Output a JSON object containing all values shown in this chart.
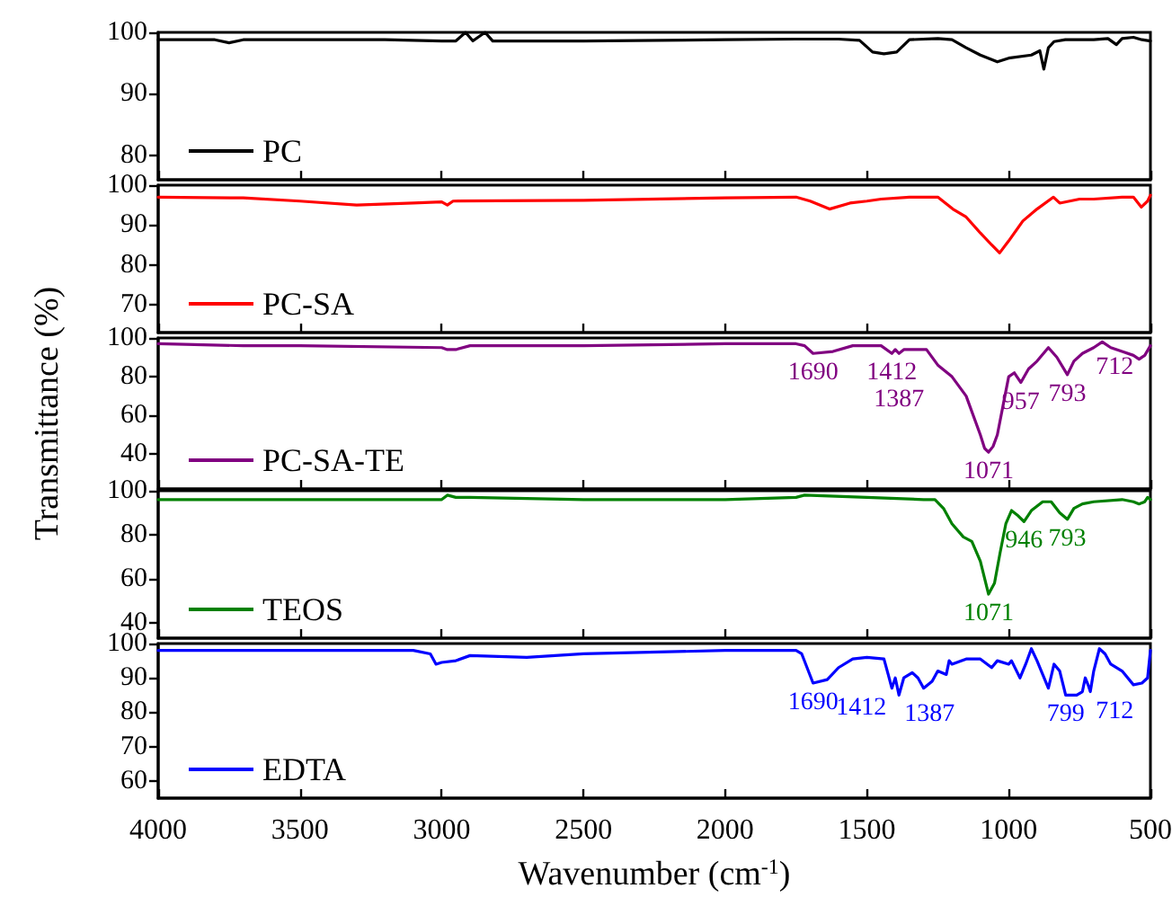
{
  "chart_data": [
    {
      "type": "line",
      "xlim": [
        4000,
        500
      ],
      "xticks": [
        4000,
        3500,
        3000,
        2500,
        2000,
        1500,
        1000,
        500
      ],
      "ylim": [
        76,
        100
      ],
      "yticks": [
        80,
        90,
        100
      ],
      "tick_labels": "y",
      "legend": "bottom left",
      "series": [
        {
          "name": "PC",
          "color": "#000000",
          "x": [
            4000,
            3800,
            3750,
            3700,
            3200,
            3000,
            2950,
            2916,
            2890,
            2847,
            2820,
            2500,
            2000,
            1750,
            1600,
            1526,
            1480,
            1440,
            1395,
            1350,
            1250,
            1200,
            1150,
            1100,
            1040,
            1000,
            920,
            890,
            876,
            860,
            840,
            800,
            700,
            650,
            620,
            600,
            560,
            530,
            500
          ],
          "values": [
            98.8,
            98.8,
            98.3,
            98.8,
            98.8,
            98.6,
            98.6,
            100,
            98.6,
            100,
            98.6,
            98.6,
            98.8,
            98.9,
            98.9,
            98.7,
            96.8,
            96.5,
            96.8,
            98.8,
            99,
            98.8,
            97.5,
            96.3,
            95.2,
            95.8,
            96.3,
            97,
            94,
            97.5,
            98.5,
            98.8,
            98.8,
            99,
            98,
            99,
            99.2,
            98.8,
            98.6
          ]
        }
      ]
    },
    {
      "type": "line",
      "xlim": [
        4000,
        500
      ],
      "xticks": [
        4000,
        3500,
        3000,
        2500,
        2000,
        1500,
        1000,
        500
      ],
      "ylim": [
        63,
        100
      ],
      "yticks": [
        70,
        80,
        90,
        100
      ],
      "tick_labels": "y",
      "legend": "bottom left",
      "series": [
        {
          "name": "PC-SA",
          "color": "#ff0000",
          "x": [
            4000,
            3700,
            3500,
            3300,
            3100,
            3000,
            2980,
            2960,
            2500,
            2000,
            1750,
            1700,
            1632,
            1560,
            1500,
            1450,
            1350,
            1250,
            1197,
            1150,
            1100,
            1060,
            1032,
            1000,
            950,
            900,
            842,
            820,
            750,
            700,
            600,
            560,
            532,
            510,
            500
          ],
          "values": [
            97,
            96.8,
            96,
            95,
            95.5,
            95.8,
            95,
            96,
            96.2,
            96.8,
            97,
            96,
            94,
            95.5,
            96,
            96.5,
            97,
            97,
            94,
            92,
            88,
            85,
            83,
            86,
            91,
            94,
            97,
            95.5,
            96.5,
            96.5,
            97,
            97,
            94.5,
            96,
            97.5
          ]
        }
      ]
    },
    {
      "type": "line",
      "xlim": [
        4000,
        500
      ],
      "xticks": [
        4000,
        3500,
        3000,
        2500,
        2000,
        1500,
        1000,
        500
      ],
      "ylim": [
        22,
        100
      ],
      "yticks": [
        40,
        60,
        80,
        100
      ],
      "tick_labels": "y",
      "legend": "bottom left",
      "ylabel": "Transmittance (%)",
      "annotations": [
        {
          "text": "1690",
          "x": 1690,
          "y": 92
        },
        {
          "text": "1412",
          "x": 1412,
          "y": 92
        },
        {
          "text": "1387",
          "x": 1387,
          "y": 92
        },
        {
          "text": "1071",
          "x": 1071,
          "y": 41
        },
        {
          "text": "957",
          "x": 957,
          "y": 77
        },
        {
          "text": "793",
          "x": 793,
          "y": 81
        },
        {
          "text": "712",
          "x": 712,
          "y": 95
        }
      ],
      "series": [
        {
          "name": "PC-SA-TE",
          "color": "#800080",
          "x": [
            4000,
            3700,
            3500,
            3000,
            2980,
            2950,
            2900,
            2500,
            2000,
            1750,
            1720,
            1690,
            1620,
            1550,
            1450,
            1412,
            1400,
            1387,
            1370,
            1340,
            1290,
            1250,
            1200,
            1150,
            1100,
            1085,
            1071,
            1055,
            1040,
            1020,
            1000,
            980,
            957,
            930,
            900,
            860,
            830,
            793,
            770,
            740,
            700,
            670,
            640,
            600,
            560,
            540,
            520,
            500
          ],
          "values": [
            97,
            96,
            96,
            95,
            94,
            94,
            96,
            96,
            97,
            97,
            96,
            92,
            93,
            96,
            96,
            92,
            94,
            92,
            94,
            94,
            94,
            86,
            80,
            70,
            50,
            43,
            41,
            44,
            50,
            65,
            80,
            82,
            77,
            84,
            88,
            95,
            90,
            81,
            88,
            92,
            95,
            98,
            95,
            93,
            91,
            89,
            91,
            96
          ]
        }
      ]
    },
    {
      "type": "line",
      "xlim": [
        4000,
        500
      ],
      "xticks": [
        4000,
        3500,
        3000,
        2500,
        2000,
        1500,
        1000,
        500
      ],
      "ylim": [
        33,
        100
      ],
      "yticks": [
        40,
        60,
        80,
        100
      ],
      "tick_labels": "y",
      "legend": "bottom left",
      "annotations": [
        {
          "text": "1071",
          "x": 1071,
          "y": 53
        },
        {
          "text": "946",
          "x": 946,
          "y": 86
        },
        {
          "text": "793",
          "x": 793,
          "y": 87
        }
      ],
      "series": [
        {
          "name": "TEOS",
          "color": "#008000",
          "x": [
            4000,
            3500,
            3000,
            2980,
            2950,
            2900,
            2500,
            2000,
            1750,
            1720,
            1500,
            1300,
            1260,
            1230,
            1200,
            1160,
            1130,
            1100,
            1071,
            1050,
            1030,
            1010,
            990,
            970,
            946,
            920,
            880,
            850,
            820,
            793,
            770,
            740,
            700,
            600,
            560,
            540,
            520,
            510,
            500
          ],
          "values": [
            96,
            96,
            96,
            98,
            97,
            97,
            96,
            96,
            97,
            98,
            97,
            96,
            96,
            92,
            85,
            79,
            77,
            68,
            53,
            58,
            72,
            85,
            91,
            89,
            86,
            91,
            95,
            95,
            90,
            87,
            92,
            94,
            95,
            96,
            95,
            94,
            95,
            97,
            96
          ]
        }
      ]
    },
    {
      "type": "line",
      "xlim": [
        4000,
        500
      ],
      "xticks": [
        4000,
        3500,
        3000,
        2500,
        2000,
        1500,
        1000,
        500
      ],
      "ylim": [
        55,
        100
      ],
      "yticks": [
        60,
        70,
        80,
        90,
        100
      ],
      "legend": "bottom left",
      "xlabel": "Wavenumber (cm$^{-1}$)",
      "annotations": [
        {
          "text": "1690",
          "x": 1690,
          "y": 88.5
        },
        {
          "text": "1412",
          "x": 1412,
          "y": 87
        },
        {
          "text": "1387",
          "x": 1387,
          "y": 85
        },
        {
          "text": "799",
          "x": 799,
          "y": 85
        },
        {
          "text": "712",
          "x": 712,
          "y": 86
        }
      ],
      "series": [
        {
          "name": "EDTA",
          "color": "#0000ff",
          "x": [
            4000,
            3500,
            3100,
            3040,
            3020,
            3000,
            2950,
            2900,
            2700,
            2500,
            2000,
            1750,
            1730,
            1690,
            1640,
            1600,
            1550,
            1500,
            1440,
            1425,
            1412,
            1400,
            1387,
            1370,
            1340,
            1320,
            1300,
            1270,
            1250,
            1220,
            1210,
            1200,
            1150,
            1100,
            1060,
            1040,
            1000,
            990,
            960,
            940,
            920,
            900,
            880,
            860,
            840,
            820,
            799,
            760,
            740,
            730,
            720,
            712,
            700,
            680,
            660,
            640,
            600,
            560,
            530,
            510,
            500
          ],
          "values": [
            98,
            98,
            98,
            97,
            94,
            94.5,
            95,
            96.5,
            96,
            97,
            98,
            98,
            97,
            88.5,
            89.5,
            93,
            95.5,
            96,
            95.5,
            91,
            87,
            90,
            85,
            90,
            91.5,
            90,
            87,
            89,
            92,
            91,
            95,
            94,
            95.5,
            95.5,
            93,
            95,
            94,
            95,
            90,
            94,
            98.5,
            95,
            91,
            87,
            94,
            92,
            85,
            85,
            86,
            90,
            88,
            86,
            92,
            98.5,
            97,
            94,
            92,
            88,
            88.5,
            90,
            98
          ]
        }
      ]
    }
  ]
}
